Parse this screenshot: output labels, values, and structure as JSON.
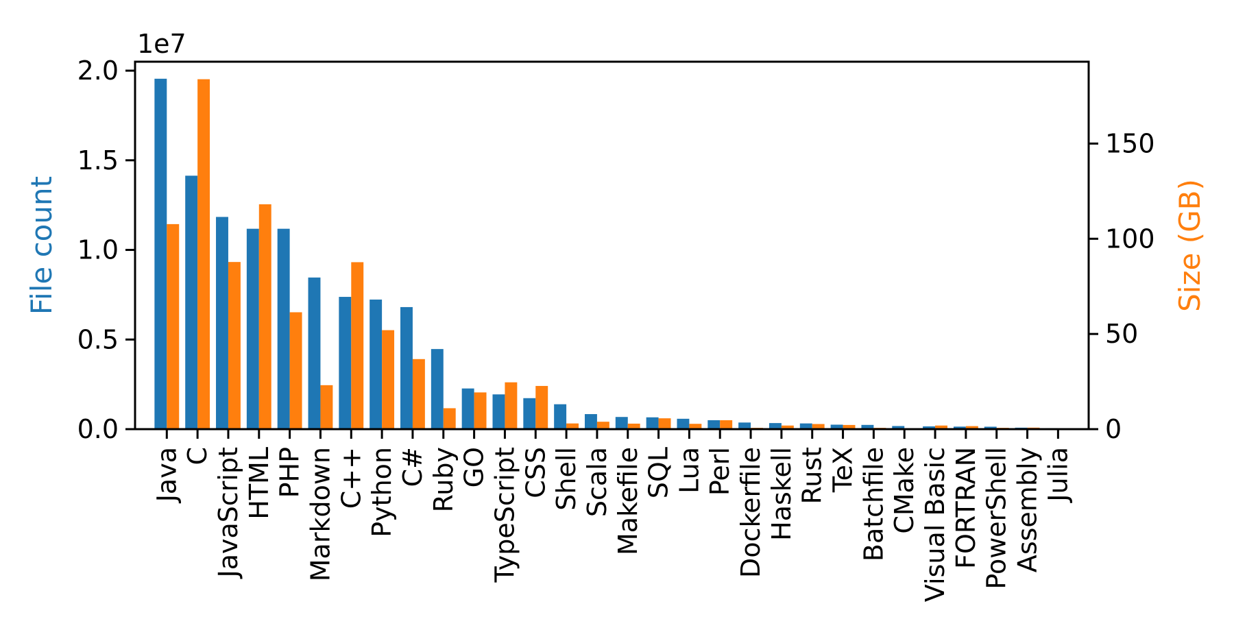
{
  "chart_data": {
    "type": "bar",
    "title": "",
    "categories": [
      "Java",
      "C",
      "JavaScript",
      "HTML",
      "PHP",
      "Markdown",
      "C++",
      "Python",
      "C#",
      "Ruby",
      "GO",
      "TypeScript",
      "CSS",
      "Shell",
      "Scala",
      "Makefile",
      "SQL",
      "Lua",
      "Perl",
      "Dockerfile",
      "Haskell",
      "Rust",
      "TeX",
      "Batchfile",
      "CMake",
      "Visual Basic",
      "FORTRAN",
      "PowerShell",
      "Assembly",
      "Julia"
    ],
    "series": [
      {
        "name": "File count",
        "axis": "left",
        "color": "#1f77b4",
        "values": [
          19550000,
          14140000,
          11840000,
          11180000,
          11180000,
          8460000,
          7380000,
          7230000,
          6810000,
          4470000,
          2270000,
          1940000,
          1730000,
          1390000,
          840000,
          680000,
          660000,
          580000,
          500000,
          370000,
          340000,
          320000,
          250000,
          237000,
          175000,
          156000,
          142000,
          137000,
          83000,
          58000
        ]
      },
      {
        "name": "Size (GB)",
        "axis": "right",
        "color": "#ff7f0e",
        "values": [
          107.7,
          183.8,
          87.8,
          118.1,
          61.4,
          23.1,
          87.7,
          52.0,
          36.8,
          11.0,
          19.3,
          24.6,
          22.7,
          3.0,
          3.9,
          2.9,
          5.7,
          2.8,
          4.7,
          0.7,
          1.9,
          2.7,
          2.2,
          0.7,
          0.5,
          1.9,
          1.6,
          0.7,
          0.8,
          0.3
        ]
      }
    ],
    "left_axis": {
      "label": "File count",
      "label_color": "#1f77b4",
      "offset_text": "1e7",
      "tick_labels": [
        "0.0",
        "0.5",
        "1.0",
        "1.5",
        "2.0"
      ],
      "tick_values": [
        0,
        5000000,
        10000000,
        15000000,
        20000000
      ],
      "lim": [
        0,
        20500000
      ]
    },
    "right_axis": {
      "label": "Size (GB)",
      "label_color": "#ff7f0e",
      "tick_labels": [
        "0",
        "50",
        "100",
        "150"
      ],
      "tick_values": [
        0,
        50,
        100,
        150
      ],
      "lim": [
        0,
        193
      ]
    },
    "xlabel": "",
    "grid": false,
    "legend": false,
    "background": "#ffffff",
    "spine_color": "#000000",
    "tick_color": "#000000"
  }
}
